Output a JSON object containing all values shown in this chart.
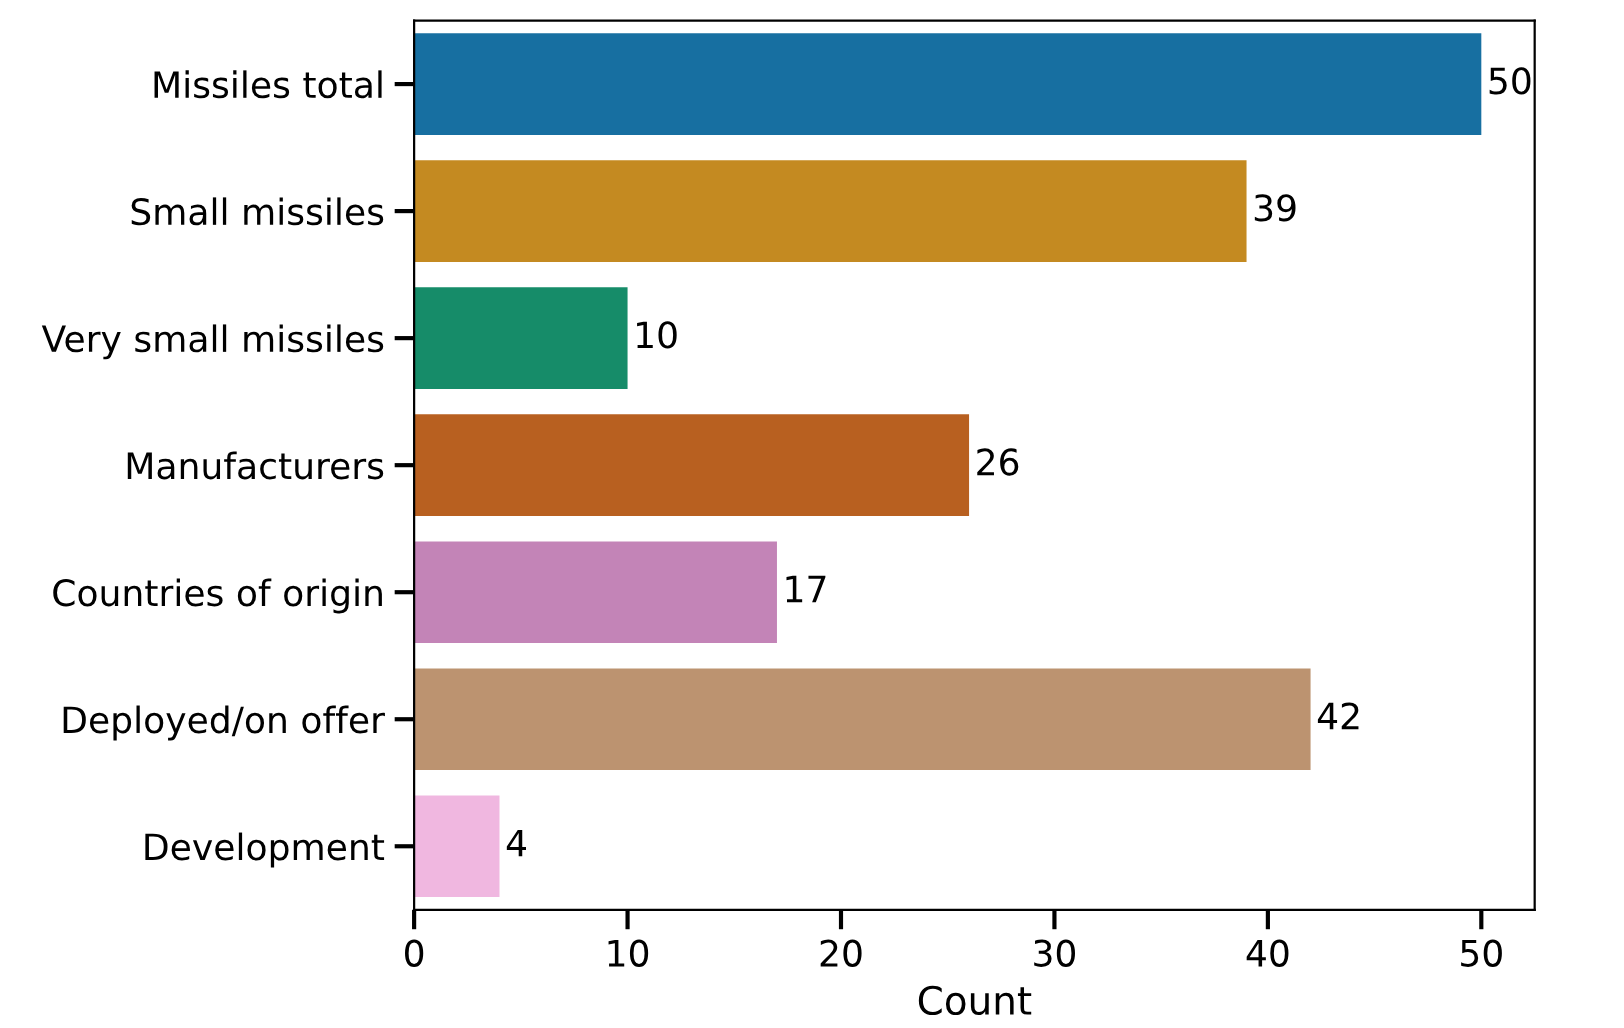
{
  "chart_data": {
    "type": "bar",
    "orientation": "horizontal",
    "xlabel": "Count",
    "categories": [
      "Missiles total",
      "Small missiles",
      "Very small missiles",
      "Manufacturers",
      "Countries of origin",
      "Deployed/on offer",
      "Development"
    ],
    "values": [
      50,
      39,
      10,
      26,
      17,
      42,
      4
    ],
    "colors": [
      "#176fa1",
      "#c48a21",
      "#168c69",
      "#b86020",
      "#c384b7",
      "#bc9370",
      "#f0b7e0"
    ],
    "xlim": [
      0,
      52.5
    ],
    "xticks": [
      0,
      10,
      20,
      30,
      40,
      50
    ],
    "data_labels": true,
    "grid": false,
    "legend": false
  }
}
